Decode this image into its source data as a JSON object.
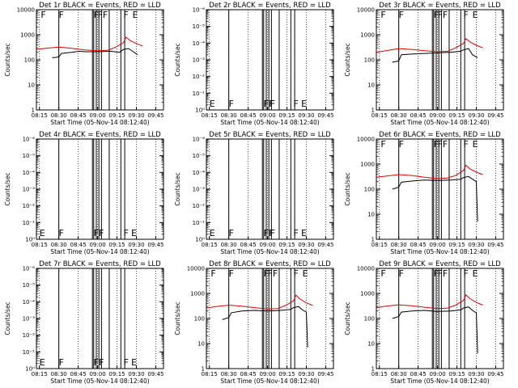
{
  "figure": {
    "xaxis_label": "Start Time (05-Nov-14 08:12:40)",
    "yaxis_label": "Counts/sec",
    "x_ticks": [
      "08:15",
      "08:30",
      "08:45",
      "09:00",
      "09:15",
      "09:30",
      "09:45"
    ],
    "y_ticks_range1": [
      "1",
      "10",
      "100",
      "1000",
      "10000"
    ],
    "y_ticks_range2": [
      "10⁰",
      "10⁻¹",
      "10⁻²",
      "10⁻³",
      "10⁻⁴",
      "10⁻⁵",
      "10⁻⁶"
    ],
    "colors": {
      "events": "#000000",
      "lld": "#e00000"
    }
  },
  "chart_data": [
    {
      "type": "line",
      "panel": 1,
      "title": "Det 1r BLACK = Events, RED = LLD",
      "xlim": [
        "08:12:40",
        "09:51"
      ],
      "ylim": [
        1,
        10000
      ],
      "yscale": "log",
      "has_data": true,
      "flags": [
        {
          "text": "F",
          "x": "08:16"
        },
        {
          "text": "F",
          "x": "08:30"
        },
        {
          "text": "F",
          "x": "08:57"
        },
        {
          "text": "FF",
          "x": "09:00"
        },
        {
          "text": "F",
          "x": "09:20"
        },
        {
          "text": "E",
          "x": "09:27"
        }
      ],
      "vlines": [
        "08:30",
        "08:56",
        "08:57",
        "08:59",
        "09:01",
        "09:03",
        "09:09",
        "09:18",
        "09:21"
      ],
      "series": [
        {
          "name": "Events",
          "color": "black",
          "x": [
            "08:25",
            "08:30",
            "08:32",
            "08:40",
            "08:46",
            "08:50",
            "09:00",
            "09:10",
            "09:17",
            "09:20",
            "09:24",
            "09:27",
            "09:31"
          ],
          "y": [
            120,
            130,
            180,
            200,
            220,
            210,
            210,
            220,
            200,
            260,
            280,
            220,
            160
          ]
        },
        {
          "name": "LLD",
          "color": "red",
          "x": [
            "08:12:40",
            "08:20",
            "08:30",
            "08:40",
            "08:50",
            "09:00",
            "09:08",
            "09:14",
            "09:20",
            "09:22",
            "09:25",
            "09:30",
            "09:35"
          ],
          "y": [
            260,
            290,
            320,
            290,
            250,
            230,
            240,
            320,
            480,
            800,
            600,
            450,
            350
          ]
        }
      ]
    },
    {
      "type": "line",
      "panel": 2,
      "title": "Det 2r BLACK = Events, RED = LLD",
      "xlim": [
        "08:12:40",
        "09:51"
      ],
      "ylim": [
        1e-06,
        1
      ],
      "yscale": "log",
      "has_data": false,
      "flags": [
        {
          "text": "E",
          "x": "08:15"
        },
        {
          "text": "F",
          "x": "08:30"
        },
        {
          "text": "FF",
          "x": "08:57"
        },
        {
          "text": "F",
          "x": "09:02"
        },
        {
          "text": "F",
          "x": "09:20"
        },
        {
          "text": "E",
          "x": "09:26"
        }
      ],
      "vlines": [
        "08:30",
        "08:56",
        "08:57",
        "08:59",
        "09:01",
        "09:03",
        "09:09",
        "09:18",
        "09:21"
      ],
      "series": []
    },
    {
      "type": "line",
      "panel": 3,
      "title": "Det 3r BLACK = Events, RED = LLD",
      "xlim": [
        "08:12:40",
        "09:51"
      ],
      "ylim": [
        1,
        10000
      ],
      "yscale": "log",
      "has_data": true,
      "flags": [
        {
          "text": "F",
          "x": "08:16"
        },
        {
          "text": "F",
          "x": "08:30"
        },
        {
          "text": "F",
          "x": "08:57"
        },
        {
          "text": "FF",
          "x": "09:00"
        },
        {
          "text": "F",
          "x": "09:20"
        },
        {
          "text": "E",
          "x": "09:27"
        }
      ],
      "vlines": [
        "08:30",
        "08:56",
        "08:57",
        "08:59",
        "09:01",
        "09:03",
        "09:09",
        "09:18",
        "09:21"
      ],
      "series": [
        {
          "name": "Events",
          "color": "black",
          "x": [
            "08:25",
            "08:30",
            "08:32",
            "08:40",
            "08:50",
            "09:00",
            "09:10",
            "09:18",
            "09:20",
            "09:24",
            "09:27",
            "09:31"
          ],
          "y": [
            80,
            90,
            160,
            170,
            180,
            190,
            200,
            220,
            250,
            280,
            160,
            120
          ]
        },
        {
          "name": "LLD",
          "color": "red",
          "x": [
            "08:12:40",
            "08:20",
            "08:30",
            "08:40",
            "08:50",
            "09:00",
            "09:08",
            "09:14",
            "09:20",
            "09:22",
            "09:25",
            "09:30",
            "09:35"
          ],
          "y": [
            200,
            230,
            280,
            260,
            230,
            210,
            220,
            300,
            450,
            700,
            520,
            380,
            300
          ]
        }
      ]
    },
    {
      "type": "line",
      "panel": 4,
      "title": "Det 4r BLACK = Events, RED = LLD",
      "xlim": [
        "08:12:40",
        "09:51"
      ],
      "ylim": [
        1e-06,
        1
      ],
      "yscale": "log",
      "has_data": false,
      "flags": [
        {
          "text": "E",
          "x": "08:15"
        },
        {
          "text": "F",
          "x": "08:30"
        },
        {
          "text": "FF",
          "x": "08:57"
        },
        {
          "text": "F",
          "x": "09:20"
        },
        {
          "text": "E",
          "x": "09:26"
        }
      ],
      "vlines": [
        "08:30",
        "08:56",
        "08:57",
        "08:59",
        "09:01",
        "09:03",
        "09:09",
        "09:18",
        "09:21"
      ],
      "series": []
    },
    {
      "type": "line",
      "panel": 5,
      "title": "Det 5r BLACK = Events, RED = LLD",
      "xlim": [
        "08:12:40",
        "09:51"
      ],
      "ylim": [
        1e-06,
        1
      ],
      "yscale": "log",
      "has_data": false,
      "flags": [
        {
          "text": "E",
          "x": "08:15"
        },
        {
          "text": "F",
          "x": "08:30"
        },
        {
          "text": "FF",
          "x": "08:57"
        },
        {
          "text": "F",
          "x": "09:02"
        },
        {
          "text": "F",
          "x": "09:20"
        },
        {
          "text": "E",
          "x": "09:26"
        }
      ],
      "vlines": [
        "08:30",
        "08:56",
        "08:57",
        "08:59",
        "09:01",
        "09:03",
        "09:09",
        "09:18",
        "09:21"
      ],
      "series": []
    },
    {
      "type": "line",
      "panel": 6,
      "title": "Det 6r BLACK = Events, RED = LLD",
      "xlim": [
        "08:12:40",
        "09:51"
      ],
      "ylim": [
        1,
        10000
      ],
      "yscale": "log",
      "has_data": true,
      "flags": [
        {
          "text": "F",
          "x": "08:16"
        },
        {
          "text": "F",
          "x": "08:30"
        },
        {
          "text": "F",
          "x": "08:57"
        },
        {
          "text": "FF",
          "x": "09:00"
        },
        {
          "text": "F",
          "x": "09:20"
        },
        {
          "text": "E",
          "x": "09:27"
        }
      ],
      "vlines": [
        "08:30",
        "08:56",
        "08:57",
        "08:59",
        "09:01",
        "09:03",
        "09:09",
        "09:18",
        "09:21"
      ],
      "series": [
        {
          "name": "Events",
          "color": "black",
          "x": [
            "08:25",
            "08:30",
            "08:32",
            "08:40",
            "08:50",
            "09:00",
            "09:10",
            "09:18",
            "09:20",
            "09:24",
            "09:27",
            "09:30",
            "09:31"
          ],
          "y": [
            100,
            120,
            190,
            210,
            230,
            220,
            230,
            250,
            290,
            320,
            250,
            200,
            5
          ]
        },
        {
          "name": "LLD",
          "color": "red",
          "x": [
            "08:12:40",
            "08:20",
            "08:30",
            "08:40",
            "08:50",
            "09:00",
            "09:08",
            "09:14",
            "09:20",
            "09:22",
            "09:25",
            "09:30",
            "09:35"
          ],
          "y": [
            300,
            330,
            380,
            350,
            300,
            260,
            280,
            350,
            550,
            900,
            650,
            480,
            380
          ]
        }
      ]
    },
    {
      "type": "line",
      "panel": 7,
      "title": "Det 7r BLACK = Events, RED = LLD",
      "xlim": [
        "08:12:40",
        "09:51"
      ],
      "ylim": [
        1e-06,
        1
      ],
      "yscale": "log",
      "has_data": false,
      "flags": [
        {
          "text": "E",
          "x": "08:15"
        },
        {
          "text": "F",
          "x": "08:30"
        },
        {
          "text": "FF",
          "x": "08:57"
        },
        {
          "text": "F",
          "x": "09:20"
        },
        {
          "text": "E",
          "x": "09:26"
        }
      ],
      "vlines": [
        "08:30",
        "08:56",
        "08:57",
        "08:59",
        "09:01",
        "09:03",
        "09:09",
        "09:18",
        "09:21"
      ],
      "series": []
    },
    {
      "type": "line",
      "panel": 8,
      "title": "Det 8r BLACK = Events, RED = LLD",
      "xlim": [
        "08:12:40",
        "09:51"
      ],
      "ylim": [
        1,
        10000
      ],
      "yscale": "log",
      "has_data": true,
      "flags": [
        {
          "text": "F",
          "x": "08:16"
        },
        {
          "text": "F",
          "x": "08:30"
        },
        {
          "text": "F",
          "x": "08:57"
        },
        {
          "text": "FF",
          "x": "09:00"
        },
        {
          "text": "F",
          "x": "09:20"
        },
        {
          "text": "E",
          "x": "09:27"
        }
      ],
      "vlines": [
        "08:30",
        "08:56",
        "08:57",
        "08:59",
        "09:01",
        "09:03",
        "09:09",
        "09:18",
        "09:21"
      ],
      "series": [
        {
          "name": "Events",
          "color": "black",
          "x": [
            "08:25",
            "08:30",
            "08:32",
            "08:40",
            "08:50",
            "09:00",
            "09:10",
            "09:18",
            "09:20",
            "09:24",
            "09:27",
            "09:30",
            "09:31"
          ],
          "y": [
            90,
            110,
            170,
            200,
            210,
            200,
            210,
            230,
            270,
            300,
            220,
            180,
            7
          ]
        },
        {
          "name": "LLD",
          "color": "red",
          "x": [
            "08:12:40",
            "08:20",
            "08:30",
            "08:40",
            "08:50",
            "09:00",
            "09:08",
            "09:14",
            "09:20",
            "09:22",
            "09:25",
            "09:30",
            "09:35"
          ],
          "y": [
            260,
            300,
            340,
            310,
            270,
            240,
            250,
            330,
            500,
            850,
            600,
            420,
            330
          ]
        }
      ]
    },
    {
      "type": "line",
      "panel": 9,
      "title": "Det 9r BLACK = Events, RED = LLD",
      "xlim": [
        "08:12:40",
        "09:51"
      ],
      "ylim": [
        1,
        10000
      ],
      "yscale": "log",
      "has_data": true,
      "flags": [
        {
          "text": "F",
          "x": "08:16"
        },
        {
          "text": "F",
          "x": "08:30"
        },
        {
          "text": "F",
          "x": "08:57"
        },
        {
          "text": "FF",
          "x": "09:00"
        },
        {
          "text": "F",
          "x": "09:20"
        },
        {
          "text": "E",
          "x": "09:27"
        }
      ],
      "vlines": [
        "08:30",
        "08:56",
        "08:57",
        "08:59",
        "09:01",
        "09:03",
        "09:09",
        "09:18",
        "09:21"
      ],
      "series": [
        {
          "name": "Events",
          "color": "black",
          "x": [
            "08:25",
            "08:30",
            "08:32",
            "08:40",
            "08:50",
            "09:00",
            "09:10",
            "09:18",
            "09:20",
            "09:24",
            "09:27",
            "09:30",
            "09:31"
          ],
          "y": [
            100,
            120,
            180,
            200,
            210,
            190,
            200,
            220,
            260,
            290,
            210,
            170,
            4
          ]
        },
        {
          "name": "LLD",
          "color": "red",
          "x": [
            "08:12:40",
            "08:20",
            "08:30",
            "08:40",
            "08:50",
            "09:00",
            "09:08",
            "09:14",
            "09:20",
            "09:22",
            "09:25",
            "09:30",
            "09:35"
          ],
          "y": [
            270,
            310,
            350,
            320,
            280,
            250,
            260,
            340,
            520,
            880,
            620,
            440,
            340
          ]
        }
      ]
    }
  ]
}
